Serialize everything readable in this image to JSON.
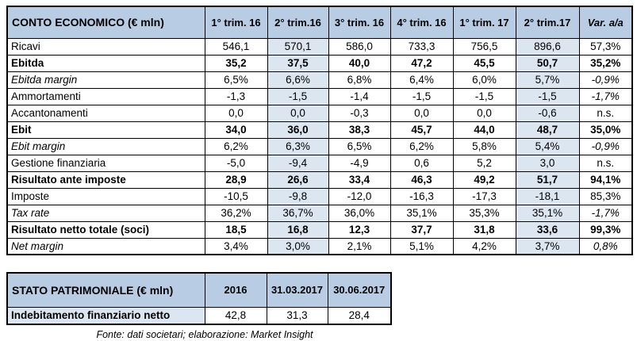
{
  "colors": {
    "header_bg": "#b8cce4",
    "highlight_bg": "#dce6f1",
    "border": "#000000"
  },
  "conto_economico": {
    "title": "CONTO ECONOMICO (€ mln)",
    "columns": [
      "1° trim. 16",
      "2° trim.16",
      "3° trim. 16",
      "4° trim. 16",
      "1° trim. 17",
      "2° trim.17",
      "Var. a/a"
    ],
    "highlight_columns": [
      1,
      5
    ],
    "rows": [
      {
        "label": "Ricavi",
        "style": "normal",
        "var_style": "normal",
        "values": [
          "546,1",
          "570,1",
          "586,0",
          "733,3",
          "756,5",
          "896,6",
          "57,3%"
        ]
      },
      {
        "label": "Ebitda",
        "style": "bold",
        "var_style": "bold",
        "values": [
          "35,2",
          "37,5",
          "40,0",
          "47,2",
          "45,5",
          "50,7",
          "35,2%"
        ]
      },
      {
        "label": "Ebitda margin",
        "style": "italic",
        "var_style": "italic",
        "values": [
          "6,5%",
          "6,6%",
          "6,8%",
          "6,4%",
          "6,0%",
          "5,7%",
          "-0,9%"
        ]
      },
      {
        "label": "Ammortamenti",
        "style": "normal",
        "var_style": "italic",
        "values": [
          "-1,3",
          "-1,5",
          "-1,4",
          "-1,5",
          "-1,5",
          "-1,5",
          "-1,7%"
        ]
      },
      {
        "label": "Accantonamenti",
        "style": "normal",
        "var_style": "normal",
        "values": [
          "0,0",
          "0,0",
          "-0,3",
          "0,0",
          "0,0",
          "-0,6",
          "n.s."
        ]
      },
      {
        "label": "Ebit",
        "style": "bold",
        "var_style": "bold",
        "values": [
          "34,0",
          "36,0",
          "38,3",
          "45,7",
          "44,0",
          "48,7",
          "35,0%"
        ]
      },
      {
        "label": "Ebit margin",
        "style": "italic",
        "var_style": "italic",
        "values": [
          "6,2%",
          "6,3%",
          "6,5%",
          "6,2%",
          "5,8%",
          "5,4%",
          "-0,9%"
        ]
      },
      {
        "label": "Gestione finanziaria",
        "style": "normal",
        "var_style": "normal",
        "values": [
          "-5,0",
          "-9,4",
          "-4,9",
          "0,6",
          "5,2",
          "3,0",
          "n.s."
        ]
      },
      {
        "label": "Risultato ante imposte",
        "style": "bold",
        "var_style": "bold",
        "values": [
          "28,9",
          "26,6",
          "33,4",
          "46,3",
          "49,2",
          "51,7",
          "94,1%"
        ]
      },
      {
        "label": "Imposte",
        "style": "normal",
        "var_style": "normal",
        "values": [
          "-10,5",
          "-9,8",
          "-12,0",
          "-16,3",
          "-17,3",
          "-18,1",
          "85,3%"
        ]
      },
      {
        "label": "Tax rate",
        "style": "italic",
        "var_style": "italic",
        "values": [
          "36,2%",
          "36,7%",
          "36,0%",
          "35,1%",
          "35,3%",
          "35,1%",
          "-1,7%"
        ]
      },
      {
        "label": "Risultato netto totale (soci)",
        "style": "bold",
        "var_style": "bold",
        "values": [
          "18,5",
          "16,8",
          "12,3",
          "37,7",
          "31,8",
          "33,6",
          "99,3%"
        ]
      },
      {
        "label": "Net margin",
        "style": "italic",
        "var_style": "italic",
        "values": [
          "3,4%",
          "3,0%",
          "2,1%",
          "5,1%",
          "4,2%",
          "3,7%",
          "0,8%"
        ]
      }
    ]
  },
  "stato_patrimoniale": {
    "title": "STATO PATRIMONIALE (€ mln)",
    "columns": [
      "2016",
      "31.03.2017",
      "30.06.2017"
    ],
    "rows": [
      {
        "label": "Indebitamento finanziario netto",
        "style": "bold",
        "values": [
          "42,8",
          "31,3",
          "28,4"
        ]
      }
    ]
  },
  "footer": {
    "text": "Fonte: dati societari; elaborazione: Market Insight"
  }
}
